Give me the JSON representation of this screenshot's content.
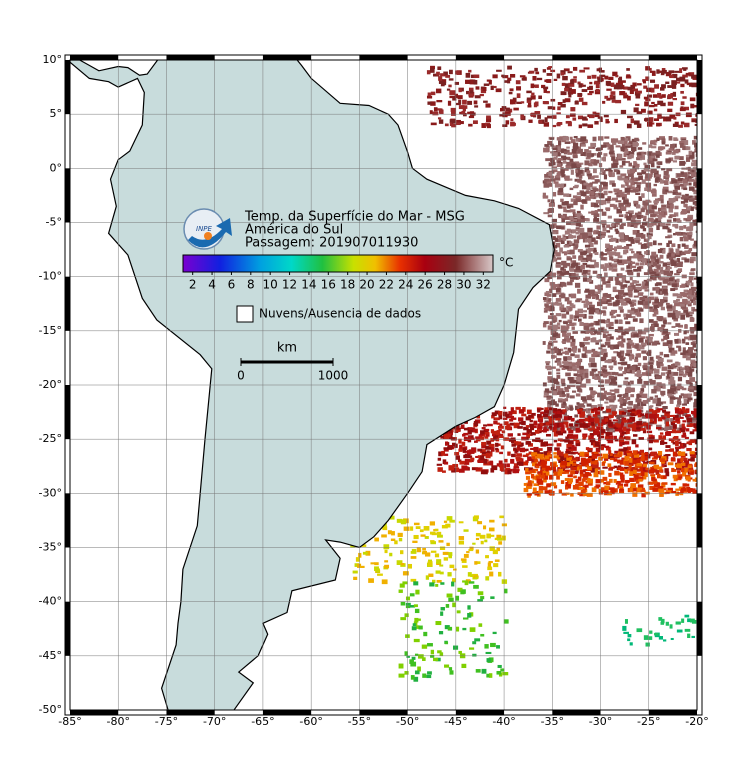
{
  "title": "Temp. da Superfície do Mar - MSG",
  "region": "América do Sul",
  "pass": "Passagem: 201907011930",
  "logo_text": "INPE",
  "colorbar": {
    "unit": "°C",
    "lim": [
      1,
      33
    ],
    "ticks": [
      2,
      4,
      6,
      8,
      10,
      12,
      14,
      16,
      18,
      20,
      22,
      24,
      26,
      28,
      30,
      32
    ]
  },
  "legend": "Nuvens/Ausencia de dados",
  "scale_bar": {
    "unit": "km",
    "ticks": [
      0,
      1000
    ]
  },
  "map": {
    "lonlim": [
      -85,
      -20
    ],
    "latlim": [
      -50,
      10
    ],
    "lon_ticks": [
      {
        "value": -85,
        "label": "-85°"
      },
      {
        "value": -80,
        "label": "-80°"
      },
      {
        "value": -75,
        "label": "-75°"
      },
      {
        "value": -70,
        "label": "-70°"
      },
      {
        "value": -65,
        "label": "-65°"
      },
      {
        "value": -60,
        "label": "-60°"
      },
      {
        "value": -55,
        "label": "-55°"
      },
      {
        "value": -50,
        "label": "-50°"
      },
      {
        "value": -45,
        "label": "-45°"
      },
      {
        "value": -40,
        "label": "-40°"
      },
      {
        "value": -35,
        "label": "-35°"
      },
      {
        "value": -30,
        "label": "-30°"
      },
      {
        "value": -25,
        "label": "-25°"
      },
      {
        "value": -20,
        "label": "-20°"
      }
    ],
    "lat_ticks": [
      {
        "value": 10,
        "label": "10°"
      },
      {
        "value": 5,
        "label": "5°"
      },
      {
        "value": 0,
        "label": "0°"
      },
      {
        "value": -5,
        "label": "-5°"
      },
      {
        "value": -10,
        "label": "-10°"
      },
      {
        "value": -15,
        "label": "-15°"
      },
      {
        "value": -20,
        "label": "-20°"
      },
      {
        "value": -25,
        "label": "-25°"
      },
      {
        "value": -30,
        "label": "-30°"
      },
      {
        "value": -35,
        "label": "-35°"
      },
      {
        "value": -40,
        "label": "-40°"
      },
      {
        "value": -45,
        "label": "-45°"
      },
      {
        "value": -50,
        "label": "-50°"
      }
    ]
  }
}
